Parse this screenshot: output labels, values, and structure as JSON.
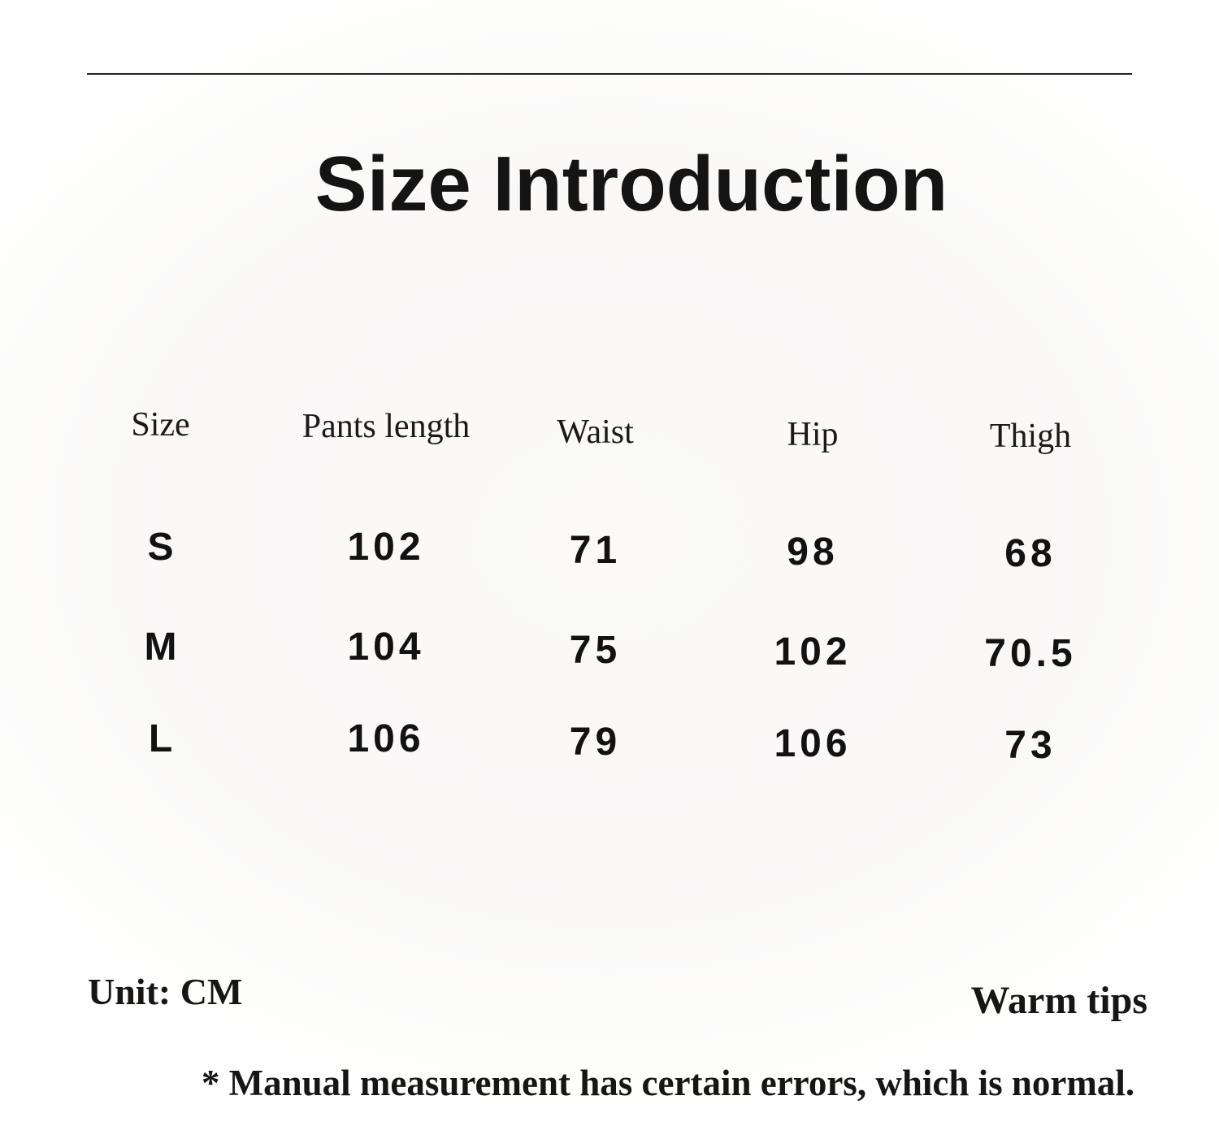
{
  "title": "Size Introduction",
  "chart_data": {
    "type": "table",
    "title": "Size Introduction",
    "unit": "CM",
    "columns": [
      "Size",
      "Pants length",
      "Waist",
      "Hip",
      "Thigh"
    ],
    "rows": [
      [
        "S",
        "102",
        "71",
        "98",
        "68"
      ],
      [
        "M",
        "104",
        "75",
        "102",
        "70.5"
      ],
      [
        "L",
        "106",
        "79",
        "106",
        "73"
      ]
    ]
  },
  "footer": {
    "unit_label": "Unit: CM",
    "warm_tips": "Warm tips",
    "note": "* Manual measurement has certain errors, which is normal."
  },
  "colors": {
    "text": "#161616",
    "background": "#faf9f8",
    "divider": "#222120"
  }
}
